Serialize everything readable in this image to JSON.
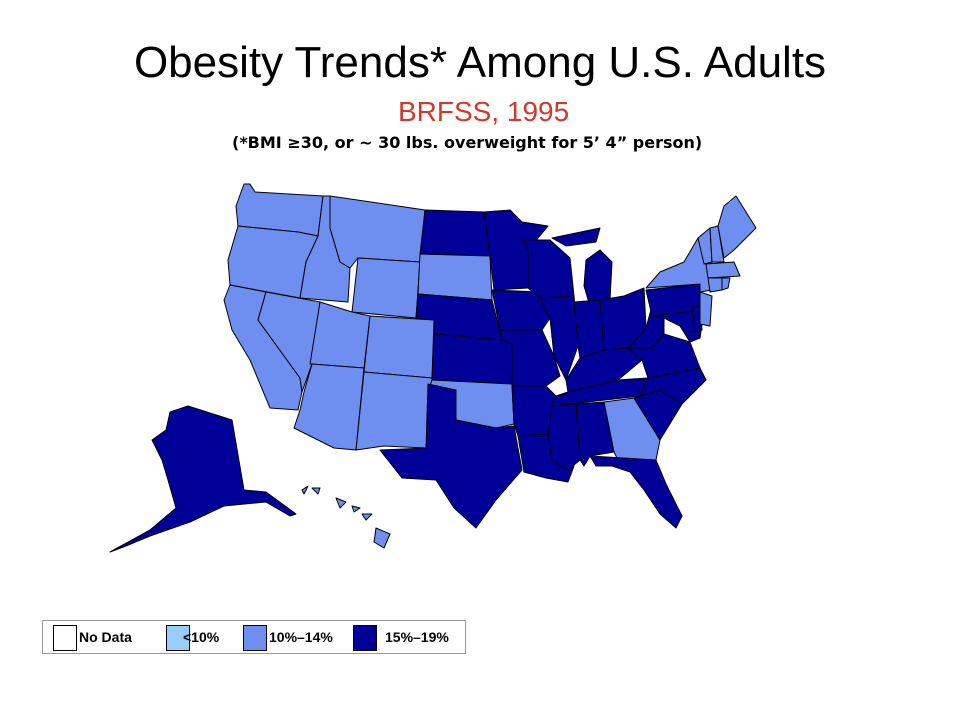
{
  "header": {
    "title": "Obesity Trends* Among U.S. Adults",
    "subtitle": "BRFSS, 1995",
    "note": "(*BMI ≥30, or ~ 30 lbs. overweight for 5’ 4” person)"
  },
  "colors": {
    "no_data": "#ffffff",
    "lt10": "#99ccff",
    "p10_14": "#6f8ff0",
    "p15_19": "#000099",
    "border": "#000000"
  },
  "legend": {
    "items": [
      {
        "label": "No Data",
        "color": "#ffffff"
      },
      {
        "label": "<10%",
        "color": "#99ccff"
      },
      {
        "label": "10%–14%",
        "color": "#6f8ff0"
      },
      {
        "label": "15%–19%",
        "color": "#000099"
      }
    ]
  },
  "map_data": {
    "year": "1995",
    "category_by_state": {
      "WA": "10%–14%",
      "OR": "10%–14%",
      "CA": "10%–14%",
      "ID": "10%–14%",
      "NV": "10%–14%",
      "MT": "10%–14%",
      "WY": "10%–14%",
      "UT": "10%–14%",
      "CO": "10%–14%",
      "AZ": "10%–14%",
      "NM": "10%–14%",
      "SD": "10%–14%",
      "OK": "10%–14%",
      "GA": "10%–14%",
      "HI": "10%–14%",
      "NY": "10%–14%",
      "VT": "10%–14%",
      "NH": "10%–14%",
      "ME": "10%–14%",
      "MA": "10%–14%",
      "CT": "10%–14%",
      "RI": "10%–14%",
      "NJ": "10%–14%",
      "ND": "15%–19%",
      "NE": "15%–19%",
      "KS": "15%–19%",
      "TX": "15%–19%",
      "MN": "15%–19%",
      "IA": "15%–19%",
      "MO": "15%–19%",
      "AR": "15%–19%",
      "LA": "15%–19%",
      "WI": "15%–19%",
      "IL": "15%–19%",
      "MI": "15%–19%",
      "IN": "15%–19%",
      "OH": "15%–19%",
      "KY": "15%–19%",
      "TN": "15%–19%",
      "MS": "15%–19%",
      "AL": "15%–19%",
      "FL": "15%–19%",
      "SC": "15%–19%",
      "NC": "15%–19%",
      "VA": "15%–19%",
      "WV": "15%–19%",
      "PA": "15%–19%",
      "MD": "15%–19%",
      "DE": "15%–19%",
      "AK": "15%–19%"
    }
  }
}
